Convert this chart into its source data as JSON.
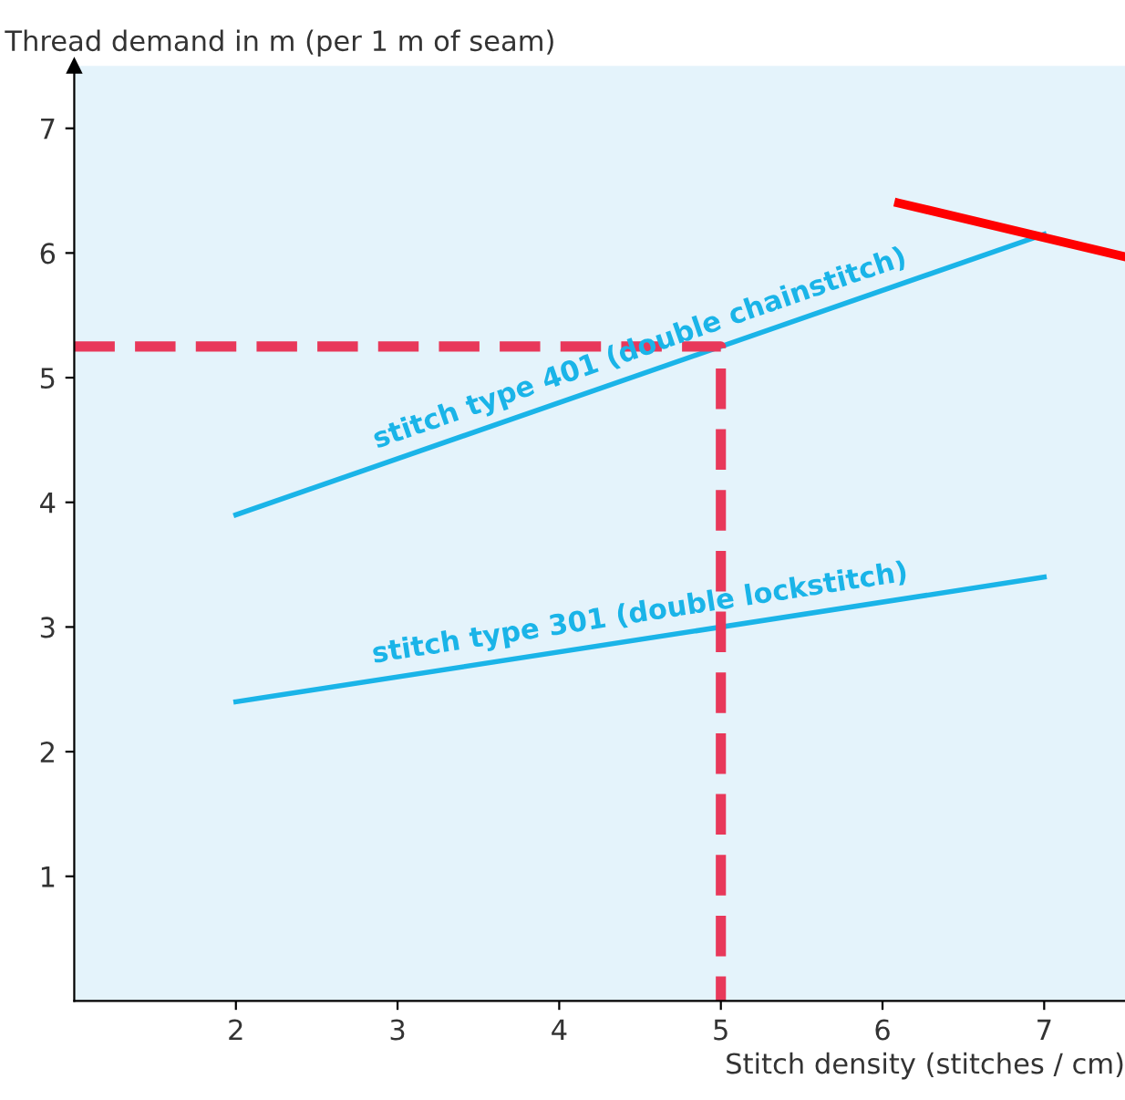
{
  "chart_data": {
    "type": "line",
    "ylabel": "Thread demand in m (per 1 m of seam)",
    "xlabel": "Stitch density (stitches / cm)",
    "series": [
      {
        "name": "stitch type 401 (double chainstitch)",
        "color": "#1ab4e8",
        "x": [
          2,
          7
        ],
        "values": [
          3.9,
          6.15
        ]
      },
      {
        "name": "stitch type 301 (double lockstitch)",
        "color": "#1ab4e8",
        "x": [
          2,
          7
        ],
        "values": [
          2.4,
          3.4
        ]
      },
      {
        "color": "#e8385a",
        "x": [
          1,
          5,
          5
        ],
        "values": [
          5.25,
          5.25,
          0
        ],
        "line_style": "dashed"
      },
      {
        "color": "#ff0000",
        "x": [
          6.1,
          7.5
        ],
        "values": [
          6.4,
          5.97
        ]
      }
    ],
    "xlim": [
      1,
      7.5
    ],
    "ylim": [
      0,
      7.5
    ],
    "xticks": [
      2,
      3,
      4,
      5,
      6,
      7
    ],
    "yticks": [
      1,
      2,
      3,
      4,
      5,
      6,
      7
    ],
    "grid": false,
    "legend": false
  }
}
